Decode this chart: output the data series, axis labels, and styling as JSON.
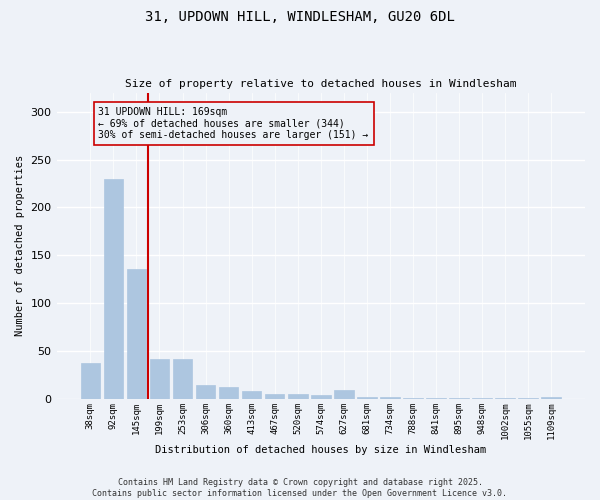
{
  "title_line1": "31, UPDOWN HILL, WINDLESHAM, GU20 6DL",
  "title_line2": "Size of property relative to detached houses in Windlesham",
  "xlabel": "Distribution of detached houses by size in Windlesham",
  "ylabel": "Number of detached properties",
  "categories": [
    "38sqm",
    "92sqm",
    "145sqm",
    "199sqm",
    "253sqm",
    "306sqm",
    "360sqm",
    "413sqm",
    "467sqm",
    "520sqm",
    "574sqm",
    "627sqm",
    "681sqm",
    "734sqm",
    "788sqm",
    "841sqm",
    "895sqm",
    "948sqm",
    "1002sqm",
    "1055sqm",
    "1109sqm"
  ],
  "values": [
    38,
    230,
    136,
    42,
    42,
    15,
    13,
    8,
    5,
    5,
    4,
    9,
    2,
    2,
    1,
    1,
    1,
    1,
    1,
    1,
    2
  ],
  "bar_color": "#adc6e0",
  "bar_edgecolor": "#adc6e0",
  "vline_x": 2.5,
  "vline_color": "#cc0000",
  "annotation_text": "31 UPDOWN HILL: 169sqm\n← 69% of detached houses are smaller (344)\n30% of semi-detached houses are larger (151) →",
  "annotation_box_color": "#cc0000",
  "ylim": [
    0,
    320
  ],
  "yticks": [
    0,
    50,
    100,
    150,
    200,
    250,
    300
  ],
  "background_color": "#eef2f8",
  "grid_color": "#ffffff",
  "footer": "Contains HM Land Registry data © Crown copyright and database right 2025.\nContains public sector information licensed under the Open Government Licence v3.0."
}
